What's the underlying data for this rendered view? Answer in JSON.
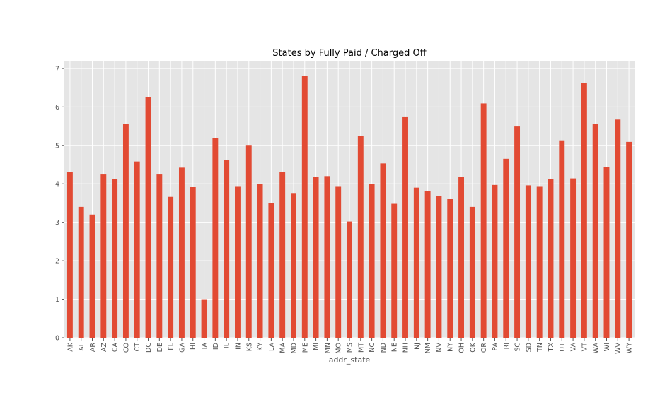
{
  "chart_data": {
    "type": "bar",
    "title": "States by Fully Paid / Charged Off",
    "xlabel": "addr_state",
    "ylabel": "",
    "ylim": [
      0,
      7.2
    ],
    "yticks": [
      0,
      1,
      2,
      3,
      4,
      5,
      6,
      7
    ],
    "grid": true,
    "bar_color": "#e24a33",
    "background_color": "#e5e5e5",
    "categories": [
      "AK",
      "AL",
      "AR",
      "AZ",
      "CA",
      "CO",
      "CT",
      "DC",
      "DE",
      "FL",
      "GA",
      "HI",
      "IA",
      "ID",
      "IL",
      "IN",
      "KS",
      "KY",
      "LA",
      "MA",
      "MD",
      "ME",
      "MI",
      "MN",
      "MO",
      "MS",
      "MT",
      "NC",
      "ND",
      "NE",
      "NH",
      "NJ",
      "NM",
      "NV",
      "NY",
      "OH",
      "OK",
      "OR",
      "PA",
      "RI",
      "SC",
      "SD",
      "TN",
      "TX",
      "UT",
      "VA",
      "VT",
      "WA",
      "WI",
      "WV",
      "WY"
    ],
    "values": [
      4.31,
      3.4,
      3.2,
      4.26,
      4.12,
      5.56,
      4.58,
      6.26,
      4.26,
      3.66,
      4.42,
      3.92,
      1.0,
      5.19,
      4.61,
      3.94,
      5.01,
      4.0,
      3.5,
      4.31,
      3.76,
      6.8,
      4.17,
      4.2,
      3.94,
      3.02,
      5.24,
      4.0,
      4.53,
      3.48,
      5.75,
      3.9,
      3.82,
      3.68,
      3.6,
      4.17,
      3.4,
      6.09,
      3.97,
      4.65,
      5.49,
      3.96,
      3.94,
      4.13,
      5.13,
      4.14,
      6.62,
      5.56,
      4.43,
      5.67,
      5.09
    ]
  }
}
